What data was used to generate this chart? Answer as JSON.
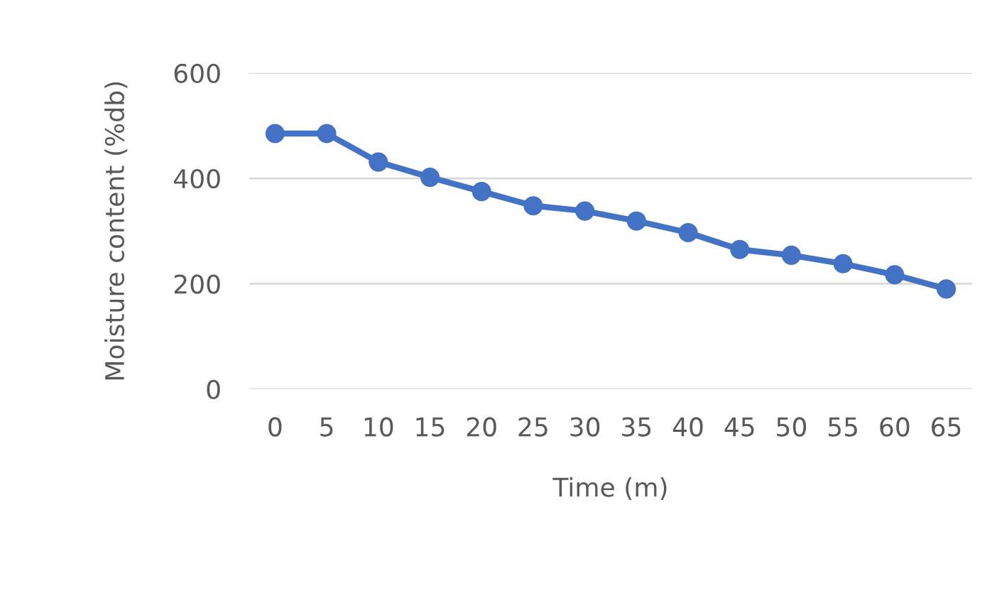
{
  "chart_data": {
    "type": "line",
    "xlabel": "Time (m)",
    "ylabel": "Moisture content (%db)",
    "categories": [
      "0",
      "5",
      "10",
      "15",
      "20",
      "25",
      "30",
      "35",
      "40",
      "45",
      "50",
      "55",
      "60",
      "65"
    ],
    "series": [
      {
        "color": "#4472c4",
        "values": [
          485,
          485,
          431,
          402,
          375,
          348,
          338,
          319,
          297,
          265,
          254,
          238,
          217,
          190
        ]
      }
    ],
    "ylim": [
      0,
      600
    ],
    "yticks": [
      0,
      200,
      400,
      600
    ],
    "grid": "y",
    "marker": "circle",
    "line_style": "solid"
  }
}
